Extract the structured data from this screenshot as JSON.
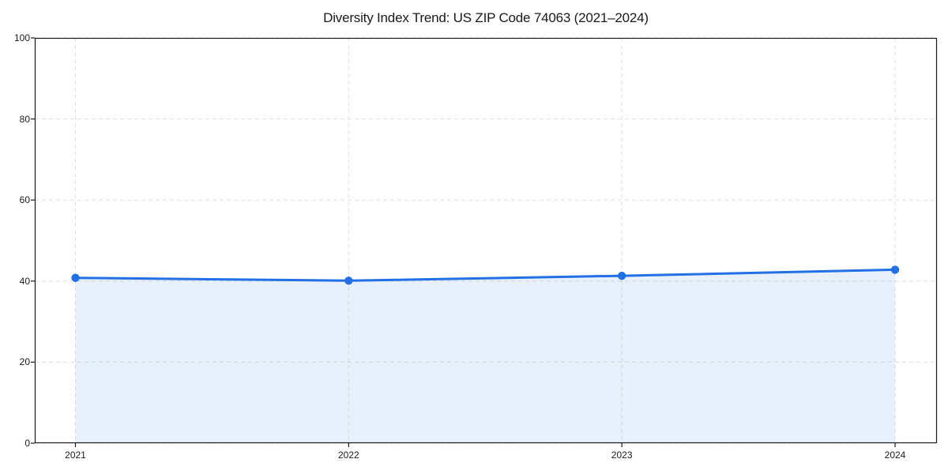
{
  "chart_data": {
    "type": "area",
    "title": "Diversity Index Trend: US ZIP Code 74063 (2021–2024)",
    "categories": [
      "2021",
      "2022",
      "2023",
      "2024"
    ],
    "series": [
      {
        "name": "Diversity Index",
        "values": [
          40.8,
          40.1,
          41.3,
          42.8
        ]
      }
    ],
    "xlabel": "",
    "ylabel": "",
    "ylim": [
      0,
      100
    ],
    "yticks": [
      0,
      20,
      40,
      60,
      80,
      100
    ],
    "grid": true,
    "grid_style": "dashed",
    "legend_position": "none",
    "colors": {
      "line": "#2170e5",
      "marker": "#2170e5",
      "fill": "rgba(33, 112, 229, 0.10)",
      "grid": "#e0e0e0",
      "spine": "#1a1a1a",
      "text": "#1a1a1a",
      "background": "#ffffff"
    }
  }
}
